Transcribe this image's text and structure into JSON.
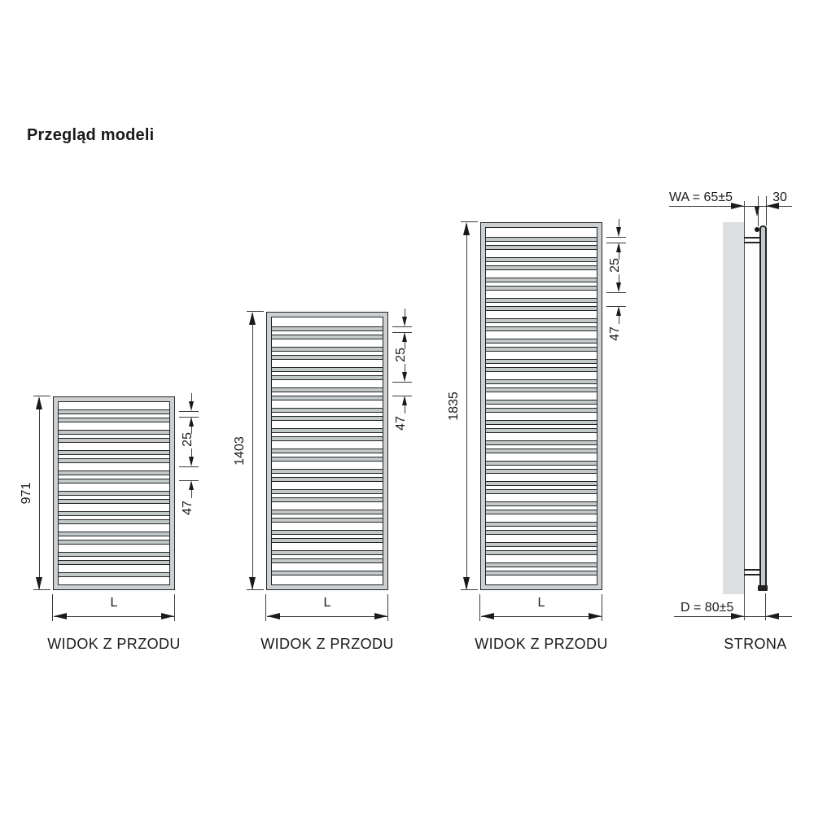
{
  "title": "Przegląd modeli",
  "radiators": [
    {
      "view_label": "WIDOK Z PRZODU",
      "height_label": "971",
      "width_label": "L",
      "tube_pitch_small": "25",
      "tube_pitch_large": "47",
      "tubes": 17
    },
    {
      "view_label": "WIDOK Z PRZODU",
      "height_label": "1403",
      "width_label": "L",
      "tube_pitch_small": "25",
      "tube_pitch_large": "47",
      "tubes": 25
    },
    {
      "view_label": "WIDOK Z PRZODU",
      "height_label": "1835",
      "width_label": "L",
      "tube_pitch_small": "25",
      "tube_pitch_large": "47",
      "tubes": 34
    }
  ],
  "side_view": {
    "label": "STRONA",
    "wall_clearance_label": "WA = 65±5",
    "tube_depth_label": "30",
    "total_depth_label": "D = 80±5"
  },
  "colors": {
    "line": "#1a1a1a",
    "metal_gray": "#ccd0d2",
    "wall_gray": "#dcdee0"
  }
}
